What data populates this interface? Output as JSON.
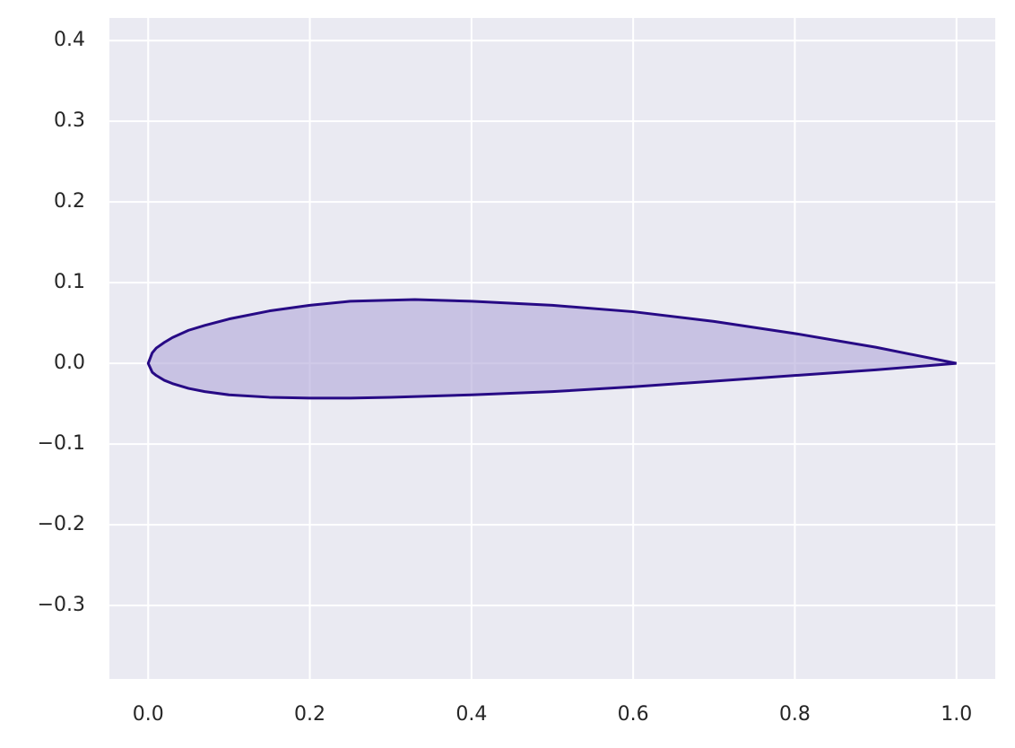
{
  "chart_data": {
    "type": "line",
    "x": [
      1.0,
      0.9,
      0.8,
      0.7,
      0.6,
      0.5,
      0.4,
      0.33,
      0.25,
      0.2,
      0.15,
      0.1,
      0.07,
      0.05,
      0.03,
      0.02,
      0.01,
      0.005,
      0.0,
      0.005,
      0.01,
      0.02,
      0.03,
      0.05,
      0.07,
      0.1,
      0.15,
      0.2,
      0.25,
      0.3,
      0.4,
      0.5,
      0.6,
      0.7,
      0.8,
      0.9,
      1.0
    ],
    "y": [
      0.0,
      0.02,
      0.037,
      0.052,
      0.064,
      0.072,
      0.077,
      0.079,
      0.077,
      0.072,
      0.065,
      0.055,
      0.047,
      0.041,
      0.032,
      0.026,
      0.019,
      0.013,
      0.0,
      -0.011,
      -0.015,
      -0.021,
      -0.025,
      -0.031,
      -0.035,
      -0.039,
      -0.042,
      -0.043,
      -0.043,
      -0.042,
      -0.039,
      -0.035,
      -0.029,
      -0.022,
      -0.015,
      -0.008,
      0.0
    ],
    "color": "#270a85",
    "fill_color": "#b0a6d8",
    "xlim": [
      -0.048,
      1.048
    ],
    "ylim": [
      -0.391,
      0.428
    ],
    "xticks": [
      {
        "value": 0,
        "label": "0.0"
      },
      0.2,
      0.4,
      0.6,
      0.8,
      {
        "value": 1,
        "label": "1.0"
      }
    ],
    "yticks": [
      {
        "value": -0.3,
        "label": "−0.3"
      },
      {
        "value": -0.2,
        "label": "−0.2"
      },
      {
        "value": -0.1,
        "label": "−0.1"
      },
      {
        "value": 0,
        "label": "0.0"
      },
      0.1,
      0.2,
      0.3,
      0.4
    ],
    "grid": true
  }
}
